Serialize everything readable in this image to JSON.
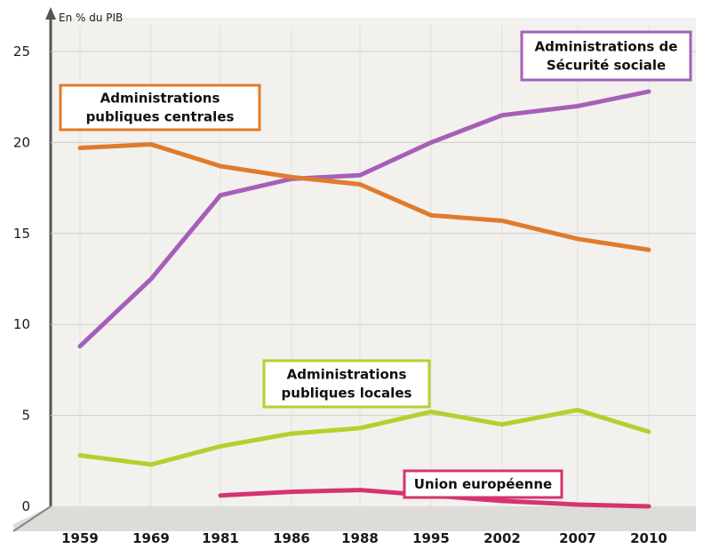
{
  "chart_data": {
    "type": "line",
    "ylabel": "En % du PIB",
    "ylim": [
      0,
      25
    ],
    "yticks": [
      "0",
      "5",
      "10",
      "15",
      "20",
      "25"
    ],
    "categories": [
      "1959",
      "1969",
      "1981",
      "1986",
      "1988",
      "1995",
      "2002",
      "2007",
      "2010"
    ],
    "grid": true,
    "series": [
      {
        "name": "Administrations de Sécurité sociale",
        "label_lines": [
          "Administrations de",
          "Sécurité sociale"
        ],
        "color": "#a65fb8",
        "values": [
          8.8,
          12.5,
          17.1,
          18.0,
          18.2,
          20.0,
          21.5,
          22.0,
          22.8
        ]
      },
      {
        "name": "Administrations publiques centrales",
        "label_lines": [
          "Administrations",
          "publiques centrales"
        ],
        "color": "#e07b2c",
        "values": [
          19.7,
          19.9,
          18.7,
          18.1,
          17.7,
          16.0,
          15.7,
          14.7,
          14.1
        ]
      },
      {
        "name": "Administrations publiques locales",
        "label_lines": [
          "Administrations",
          "publiques locales"
        ],
        "color": "#b6cf2f",
        "values": [
          2.8,
          2.3,
          3.3,
          4.0,
          4.3,
          5.2,
          4.5,
          5.3,
          4.1
        ]
      },
      {
        "name": "Union européenne",
        "label_lines": [
          "Union européenne"
        ],
        "color": "#d6336f",
        "values": [
          null,
          null,
          0.6,
          0.8,
          0.9,
          0.6,
          0.3,
          0.1,
          0.0
        ]
      }
    ]
  }
}
